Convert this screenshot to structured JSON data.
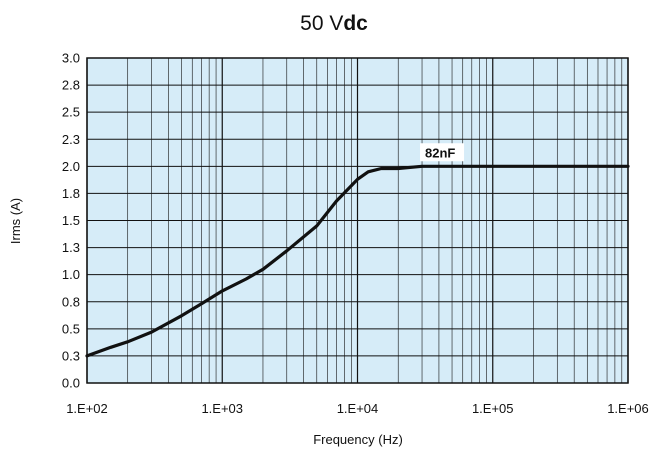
{
  "chart_data": {
    "type": "line",
    "title_main": "50 V",
    "title_bold": "dc",
    "xlabel": "Frequency (Hz)",
    "ylabel": "Irms (A)",
    "x_scale": "log",
    "xlim": [
      100,
      1000000
    ],
    "ylim": [
      0,
      3.0
    ],
    "x_ticks": [
      {
        "value": 100,
        "label": "1.E+02"
      },
      {
        "value": 1000,
        "label": "1.E+03"
      },
      {
        "value": 10000,
        "label": "1.E+04"
      },
      {
        "value": 100000,
        "label": "1.E+05"
      },
      {
        "value": 1000000,
        "label": "1.E+06"
      }
    ],
    "y_ticks": [
      {
        "value": 0.0,
        "label": "0.0"
      },
      {
        "value": 0.25,
        "label": "0.3"
      },
      {
        "value": 0.5,
        "label": "0.5"
      },
      {
        "value": 0.75,
        "label": "0.8"
      },
      {
        "value": 1.0,
        "label": "1.0"
      },
      {
        "value": 1.25,
        "label": "1.3"
      },
      {
        "value": 1.5,
        "label": "1.5"
      },
      {
        "value": 1.75,
        "label": "1.8"
      },
      {
        "value": 2.0,
        "label": "2.0"
      },
      {
        "value": 2.25,
        "label": "2.3"
      },
      {
        "value": 2.5,
        "label": "2.5"
      },
      {
        "value": 2.75,
        "label": "2.8"
      },
      {
        "value": 3.0,
        "label": "3.0"
      }
    ],
    "grid": true,
    "plot_background": "#d6ecf8",
    "grid_color": "#111111",
    "line_color": "#111111",
    "series": [
      {
        "name": "82nF",
        "x": [
          100,
          150,
          200,
          300,
          500,
          700,
          1000,
          1500,
          2000,
          3000,
          5000,
          7000,
          9000,
          10000,
          12000,
          15000,
          20000,
          30000,
          50000,
          100000,
          1000000
        ],
        "y": [
          0.25,
          0.33,
          0.38,
          0.47,
          0.62,
          0.73,
          0.85,
          0.96,
          1.05,
          1.22,
          1.45,
          1.68,
          1.82,
          1.88,
          1.95,
          1.98,
          1.98,
          2.0,
          2.0,
          2.0,
          2.0
        ]
      }
    ],
    "annotation": {
      "text": "82nF",
      "x": 29000,
      "y": 2.13
    }
  }
}
